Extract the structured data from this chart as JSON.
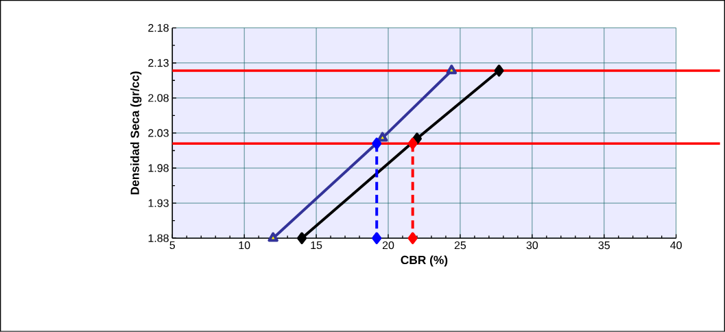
{
  "chart_data": {
    "type": "line",
    "xlabel": "CBR  (%)",
    "ylabel": "Densidad Seca (gr/cc)",
    "xlim": [
      5,
      40
    ],
    "xticks": [
      5,
      10,
      15,
      20,
      25,
      30,
      35,
      40
    ],
    "ylim": [
      1.88,
      2.18
    ],
    "yticks": [
      1.88,
      1.93,
      1.98,
      2.03,
      2.08,
      2.13,
      2.18
    ],
    "grid": true,
    "series": [
      {
        "color": "#333399",
        "x": [
          12.0,
          19.6,
          24.4
        ],
        "values": [
          1.88,
          2.023,
          2.119
        ],
        "marker": "triangle",
        "line_style": "solid"
      },
      {
        "color": "#000000",
        "x": [
          14.0,
          22.0,
          27.7
        ],
        "values": [
          1.88,
          2.022,
          2.119
        ],
        "marker": "diamond",
        "line_style": "solid"
      },
      {
        "color": "#0000ff",
        "x": [
          19.2,
          19.2
        ],
        "values": [
          2.015,
          1.88
        ],
        "marker": "diamond",
        "line_style": "dashed"
      },
      {
        "color": "#ff0000",
        "x": [
          21.7,
          21.7
        ],
        "values": [
          2.015,
          1.88
        ],
        "marker": "diamond",
        "line_style": "dashed"
      }
    ],
    "ref_lines": [
      {
        "axis": "y",
        "value": 2.119,
        "color": "#ff0000",
        "line_style": "solid"
      },
      {
        "axis": "y",
        "value": 2.015,
        "color": "#ff0000",
        "line_style": "solid"
      }
    ]
  }
}
